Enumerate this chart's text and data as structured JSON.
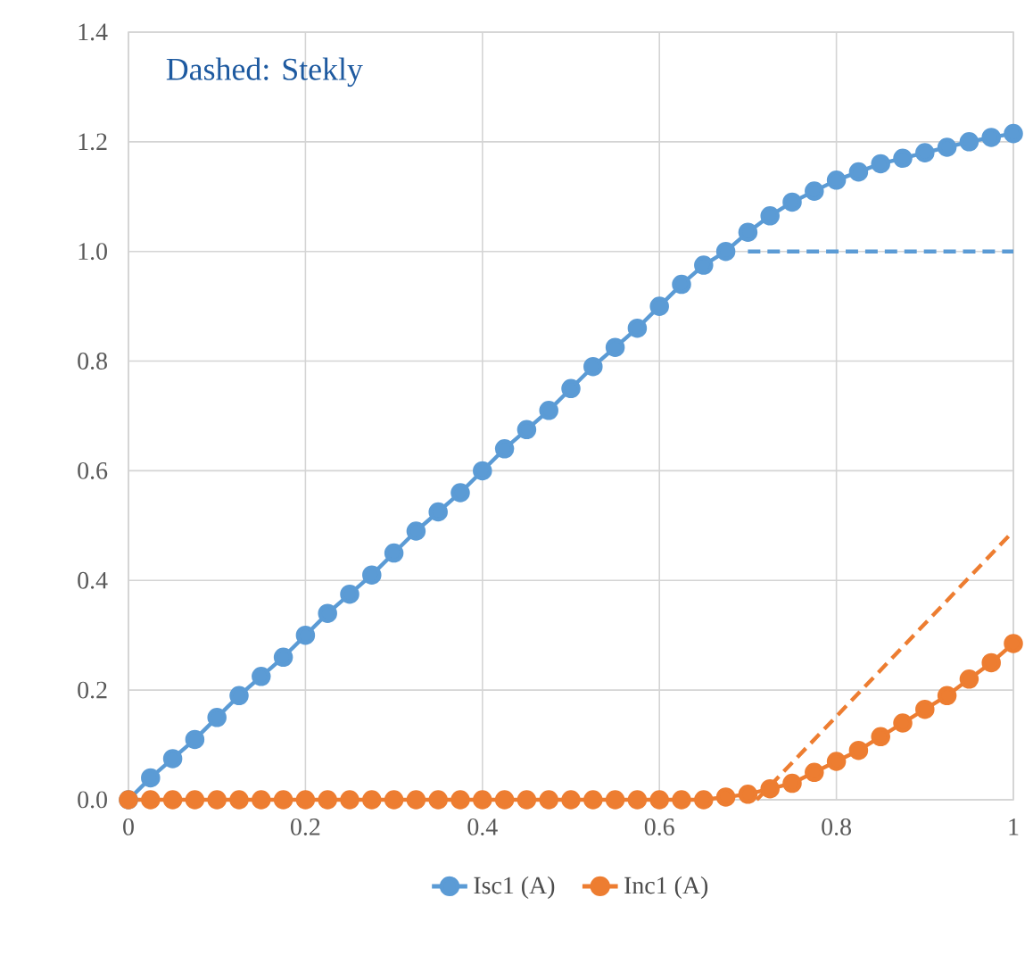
{
  "chart_data": {
    "type": "line",
    "x": [
      0,
      0.025,
      0.05,
      0.075,
      0.1,
      0.125,
      0.15,
      0.175,
      0.2,
      0.225,
      0.25,
      0.275,
      0.3,
      0.325,
      0.35,
      0.375,
      0.4,
      0.425,
      0.45,
      0.475,
      0.5,
      0.525,
      0.55,
      0.575,
      0.6,
      0.625,
      0.65,
      0.675,
      0.7,
      0.725,
      0.75,
      0.775,
      0.8,
      0.825,
      0.85,
      0.875,
      0.9,
      0.925,
      0.95,
      0.975,
      1
    ],
    "series": [
      {
        "name": "Isc1 (A)",
        "color": "#5b9bd5",
        "marker": "circle",
        "line_style": "solid",
        "values": [
          0,
          0.04,
          0.075,
          0.11,
          0.15,
          0.19,
          0.225,
          0.26,
          0.3,
          0.34,
          0.375,
          0.41,
          0.45,
          0.49,
          0.525,
          0.56,
          0.6,
          0.64,
          0.675,
          0.71,
          0.75,
          0.79,
          0.825,
          0.86,
          0.9,
          0.94,
          0.975,
          1.0,
          1.035,
          1.065,
          1.09,
          1.11,
          1.13,
          1.145,
          1.16,
          1.17,
          1.18,
          1.19,
          1.2,
          1.208,
          1.215
        ]
      },
      {
        "name": "Inc1 (A)",
        "color": "#ed7d31",
        "marker": "circle",
        "line_style": "solid",
        "values": [
          0,
          0,
          0,
          0,
          0,
          0,
          0,
          0,
          0,
          0,
          0,
          0,
          0,
          0,
          0,
          0,
          0,
          0,
          0,
          0,
          0,
          0,
          0,
          0,
          0,
          0,
          0,
          0.005,
          0.01,
          0.02,
          0.03,
          0.05,
          0.07,
          0.09,
          0.115,
          0.14,
          0.165,
          0.19,
          0.22,
          0.25,
          0.285
        ]
      },
      {
        "color": "#5b9bd5",
        "marker": "none",
        "line_style": "dashed",
        "x": [
          0.7,
          1
        ],
        "values": [
          1.0,
          1.0
        ]
      },
      {
        "color": "#ed7d31",
        "marker": "none",
        "line_style": "dashed",
        "x": [
          0.71,
          1
        ],
        "values": [
          0,
          0.49
        ]
      }
    ],
    "xlim": [
      0,
      1
    ],
    "ylim": [
      0,
      1.4
    ],
    "xticks": [
      0,
      0.2,
      0.4,
      0.6,
      0.8,
      1
    ],
    "yticks": [
      {
        "value": 0,
        "label": "0.0"
      },
      {
        "value": 0.2,
        "label": "0.2"
      },
      {
        "value": 0.4,
        "label": "0.4"
      },
      {
        "value": 0.6,
        "label": "0.6"
      },
      {
        "value": 0.8,
        "label": "0.8"
      },
      {
        "value": 1.0,
        "label": "1.0"
      },
      {
        "value": 1.2,
        "label": "1.2"
      },
      {
        "value": 1.4,
        "label": "1.4"
      }
    ],
    "grid": true,
    "legend": "bottom",
    "annotations": [
      "Dashed: Stekly"
    ]
  }
}
